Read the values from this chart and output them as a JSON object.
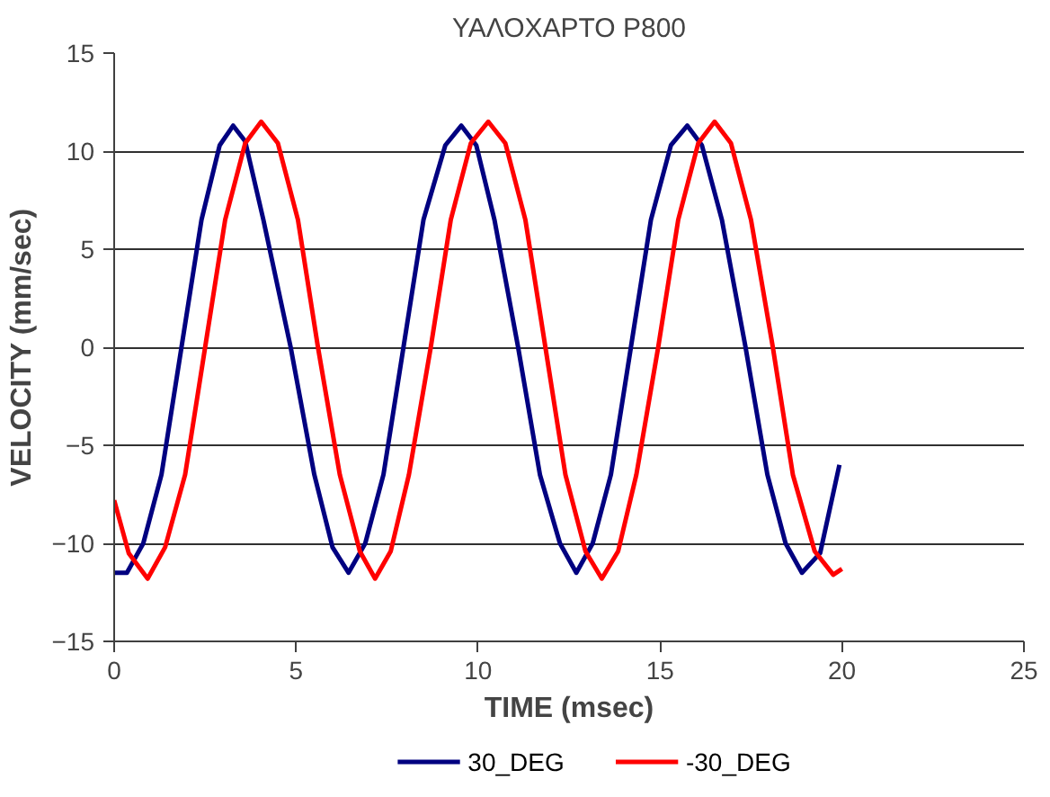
{
  "chart_data": {
    "type": "line",
    "title": "ΥΑΛΟΧΑΡΤΟ P800",
    "xlabel": "TIME (msec)",
    "ylabel": "VELOCITY (mm/sec)",
    "xlim": [
      0,
      25
    ],
    "xticks": [
      0,
      5,
      10,
      15,
      20,
      25
    ],
    "ylim": [
      -15,
      15
    ],
    "yticks": [
      -15,
      -10,
      -5,
      0,
      5,
      10,
      15
    ],
    "grid": "y",
    "legend": "bottom",
    "marker": "none",
    "line_style": "solid",
    "series": [
      {
        "name": "30_DEG",
        "color": "#000080",
        "x": [
          0,
          0.35,
          0.8,
          1.3,
          1.85,
          2.4,
          2.9,
          3.27,
          3.6,
          4.1,
          4.85,
          5.5,
          6.0,
          6.44,
          6.9,
          7.4,
          7.95,
          8.5,
          9.1,
          9.54,
          9.95,
          10.45,
          11.1,
          11.7,
          12.25,
          12.7,
          13.15,
          13.65,
          14.2,
          14.75,
          15.3,
          15.75,
          16.15,
          16.7,
          17.35,
          17.95,
          18.45,
          18.9,
          19.4,
          19.93
        ],
        "values": [
          -11.5,
          -11.5,
          -10,
          -6.5,
          0,
          6.5,
          10.3,
          11.3,
          10.5,
          6.5,
          0,
          -6.5,
          -10.2,
          -11.5,
          -10,
          -6.5,
          0,
          6.5,
          10.3,
          11.3,
          10.3,
          6.5,
          0,
          -6.5,
          -10,
          -11.5,
          -10,
          -6.5,
          0,
          6.5,
          10.3,
          11.3,
          10.3,
          6.5,
          0,
          -6.5,
          -10,
          -11.5,
          -10.5,
          -6
        ]
      },
      {
        "name": "-30_DEG",
        "color": "#ff0000",
        "x": [
          0,
          0.4,
          0.92,
          1.4,
          1.95,
          2.5,
          3.05,
          3.6,
          4.04,
          4.5,
          5.05,
          5.6,
          6.2,
          6.75,
          7.17,
          7.6,
          8.1,
          8.7,
          9.25,
          9.8,
          10.28,
          10.75,
          11.3,
          11.85,
          12.4,
          12.95,
          13.4,
          13.85,
          14.35,
          14.95,
          15.5,
          16.05,
          16.5,
          16.95,
          17.5,
          18.1,
          18.65,
          19.25,
          19.76,
          20
        ],
        "values": [
          -7.8,
          -10.5,
          -11.8,
          -10.2,
          -6.5,
          0,
          6.5,
          10.4,
          11.5,
          10.4,
          6.5,
          0,
          -6.5,
          -10.4,
          -11.8,
          -10.4,
          -6.5,
          0,
          6.5,
          10.4,
          11.5,
          10.4,
          6.5,
          0,
          -6.5,
          -10.4,
          -11.8,
          -10.4,
          -6.5,
          0,
          6.5,
          10.4,
          11.5,
          10.4,
          6.5,
          0,
          -6.5,
          -10.4,
          -11.6,
          -11.3
        ]
      }
    ]
  }
}
